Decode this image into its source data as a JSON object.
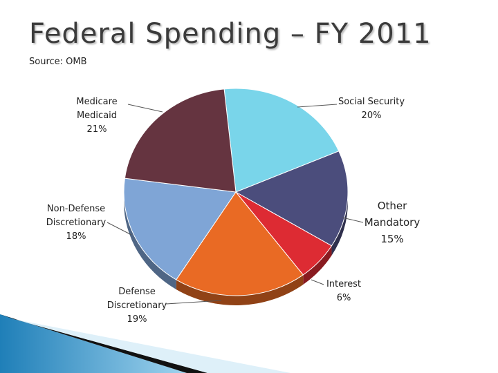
{
  "slide": {
    "title": "Federal Spending – FY 2011",
    "subtitle": "Source: OMB"
  },
  "chart_data": {
    "type": "pie",
    "title": "",
    "slices": [
      {
        "label_lines": [
          "Social Security"
        ],
        "value_label": "20%",
        "value": 20,
        "color": "#79d5ea"
      },
      {
        "label_lines": [
          "Other",
          "Mandatory"
        ],
        "value_label": "15%",
        "value": 15,
        "color": "#4b4d7c"
      },
      {
        "label_lines": [
          "Interest"
        ],
        "value_label": "6%",
        "value": 6,
        "color": "#dd2b33"
      },
      {
        "label_lines": [
          "Defense",
          "Discretionary"
        ],
        "value_label": "19%",
        "value": 19,
        "color": "#e96a24"
      },
      {
        "label_lines": [
          "Non-Defense",
          "Discretionary"
        ],
        "value_label": "18%",
        "value": 18,
        "color": "#7fa5d6"
      },
      {
        "label_lines": [
          "Medicare",
          "Medicaid"
        ],
        "value_label": "21%",
        "value": 21,
        "color": "#653440"
      }
    ],
    "label_colors": {
      "Non-Defense": "#d43a2a"
    }
  }
}
